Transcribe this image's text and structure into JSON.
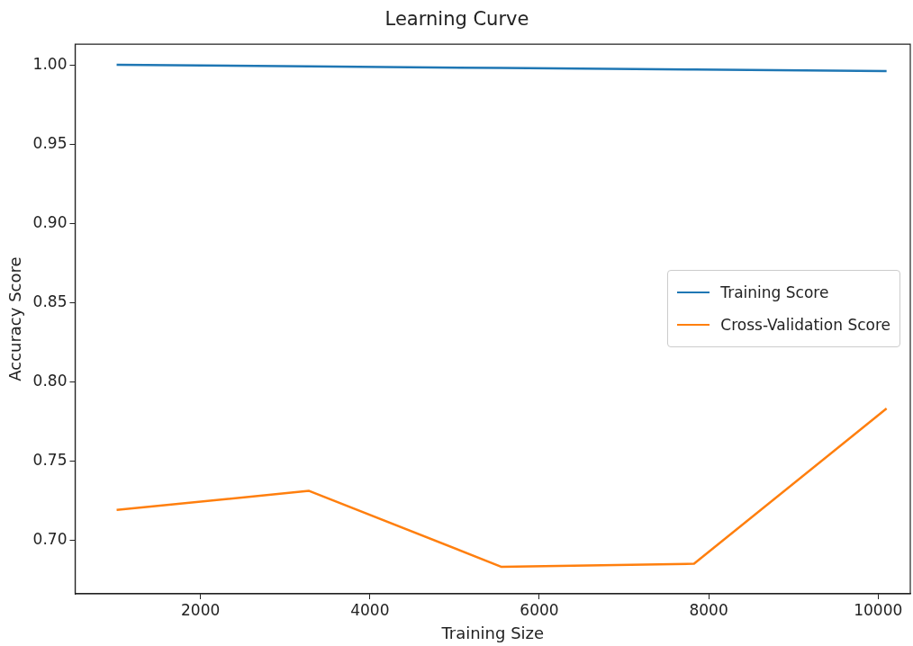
{
  "chart_data": {
    "type": "line",
    "title": "Learning Curve",
    "xlabel": "Training Size",
    "ylabel": "Accuracy Score",
    "x": [
      1010,
      3282,
      5555,
      7827,
      10100
    ],
    "series": [
      {
        "name": "Training Score",
        "color": "#1f77b4",
        "values": [
          1.0,
          0.999,
          0.998,
          0.997,
          0.996
        ]
      },
      {
        "name": "Cross-Validation Score",
        "color": "#ff7f0e",
        "values": [
          0.719,
          0.731,
          0.683,
          0.685,
          0.783
        ]
      }
    ],
    "xlim": [
      520,
      10380
    ],
    "xticks": [
      2000,
      4000,
      6000,
      8000,
      10000
    ],
    "ylim": [
      0.666,
      1.013
    ],
    "yticks": [
      {
        "value": 0.7,
        "label": "0.70"
      },
      {
        "value": 0.75,
        "label": "0.75"
      },
      {
        "value": 0.8,
        "label": "0.80"
      },
      {
        "value": 0.85,
        "label": "0.85"
      },
      {
        "value": 0.9,
        "label": "0.90"
      },
      {
        "value": 0.95,
        "label": "0.95"
      },
      {
        "value": 1.0,
        "label": "1.00"
      }
    ],
    "grid": false,
    "legend": "right",
    "marker": "none",
    "line_style": "solid"
  }
}
